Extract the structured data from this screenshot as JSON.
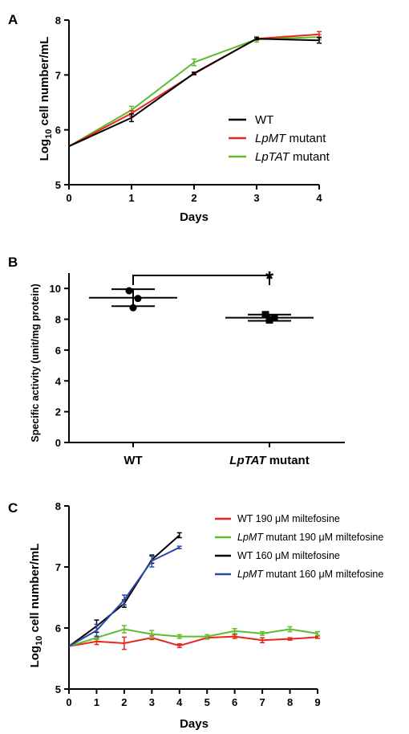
{
  "chart_data": [
    {
      "panel": "A",
      "type": "line",
      "x": [
        0,
        1,
        2,
        3,
        4
      ],
      "xticks": [
        "0",
        "1",
        "2",
        "3",
        "4"
      ],
      "yticks": [
        "5",
        "6",
        "7",
        "8"
      ],
      "xlabel": "Days",
      "ylabel_main": "Log",
      "ylabel_sub": "10",
      "ylabel_rest": " cell number/mL",
      "xlim": [
        0,
        4
      ],
      "ylim": [
        5,
        8
      ],
      "legend_position": "right",
      "series": [
        {
          "name": "WT",
          "name_italic": "",
          "name_suffix": "WT",
          "color": "#000000",
          "values": [
            5.7,
            6.22,
            7.03,
            7.66,
            7.63
          ],
          "errors": [
            0,
            0.07,
            0.02,
            0.02,
            0.05
          ]
        },
        {
          "name": "LpMT mutant",
          "name_italic": "LpMT",
          "name_suffix": " mutant",
          "color": "#e8261c",
          "values": [
            5.7,
            6.3,
            7.02,
            7.66,
            7.74
          ],
          "errors": [
            0,
            0.05,
            0.02,
            0.02,
            0.05
          ]
        },
        {
          "name": "LpTAT mutant",
          "name_italic": "LpTAT",
          "name_suffix": " mutant",
          "color": "#5dbb2c",
          "values": [
            5.7,
            6.36,
            7.23,
            7.65,
            7.69
          ],
          "errors": [
            0,
            0.07,
            0.06,
            0.05,
            0.05
          ]
        }
      ]
    },
    {
      "panel": "B",
      "type": "scatter",
      "categories": [
        "WT",
        "LpTAT mutant"
      ],
      "category_italic": [
        "",
        "LpTAT"
      ],
      "category_suffix": [
        "WT",
        " mutant"
      ],
      "ylabel": "Specific activity (unit/mg protein)",
      "yticks": [
        "0",
        "2",
        "4",
        "6",
        "8",
        "10"
      ],
      "ylim": [
        0,
        11
      ],
      "significance": "*",
      "series": [
        {
          "name": "WT",
          "marker": "circle",
          "points": [
            9.85,
            9.35,
            8.75
          ],
          "mean": 9.4,
          "sd": 0.55
        },
        {
          "name": "LpTAT mutant",
          "marker": "square",
          "points": [
            8.3,
            8.1,
            7.95
          ],
          "mean": 8.1,
          "sd": 0.2
        }
      ]
    },
    {
      "panel": "C",
      "type": "line",
      "xticks": [
        "0",
        "1",
        "2",
        "3",
        "4",
        "5",
        "6",
        "7",
        "8",
        "9"
      ],
      "yticks": [
        "5",
        "6",
        "7",
        "8"
      ],
      "xlabel": "Days",
      "ylabel_main": "Log",
      "ylabel_sub": "10",
      "ylabel_rest": " cell number/mL",
      "xlim": [
        0,
        9
      ],
      "ylim": [
        5,
        8
      ],
      "legend_position": "top-right",
      "series": [
        {
          "name": "WT 190 μM miltefosine",
          "name_italic": "",
          "name_suffix": "WT 190 μM miltefosine",
          "color": "#e8261c",
          "x": [
            0,
            1,
            2,
            3,
            4,
            5,
            6,
            7,
            8,
            9
          ],
          "values": [
            5.7,
            5.78,
            5.75,
            5.84,
            5.71,
            5.84,
            5.86,
            5.8,
            5.82,
            5.85
          ],
          "errors": [
            0,
            0.05,
            0.1,
            0.03,
            0.03,
            0.02,
            0.03,
            0.04,
            0.02,
            0.02
          ]
        },
        {
          "name": "LpMT mutant 190 μM miltefosine",
          "name_italic": "LpMT",
          "name_suffix": " mutant 190 μM miltefosine",
          "color": "#5dbb2c",
          "x": [
            0,
            1,
            2,
            3,
            4,
            5,
            6,
            7,
            8,
            9
          ],
          "values": [
            5.7,
            5.84,
            5.98,
            5.9,
            5.86,
            5.86,
            5.95,
            5.91,
            5.98,
            5.91
          ],
          "errors": [
            0,
            0.03,
            0.06,
            0.06,
            0.03,
            0.03,
            0.04,
            0.03,
            0.04,
            0.03
          ]
        },
        {
          "name": "WT 160 μM miltefosine",
          "name_italic": "",
          "name_suffix": "WT 160 μM miltefosine",
          "color": "#000000",
          "x": [
            0,
            1,
            2,
            3,
            4
          ],
          "values": [
            5.7,
            6.03,
            6.4,
            7.12,
            7.52
          ],
          "errors": [
            0,
            0.1,
            0.06,
            0.06,
            0.04
          ]
        },
        {
          "name": "LpMT mutant 160 μM miltefosine",
          "name_italic": "LpMT",
          "name_suffix": " mutant 160 μM miltefosine",
          "color": "#2a4aa8",
          "x": [
            0,
            1,
            2,
            3,
            4
          ],
          "values": [
            5.7,
            5.96,
            6.46,
            7.1,
            7.32
          ],
          "errors": [
            0,
            0.1,
            0.08,
            0.1,
            0.02
          ]
        }
      ]
    }
  ]
}
